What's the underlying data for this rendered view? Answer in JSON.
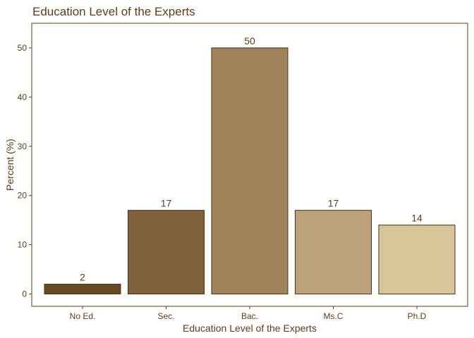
{
  "colors": {
    "text": "#5c3d1a",
    "axis": "#5c3d1a",
    "bar_outline": "#4a3214",
    "bars": [
      "#674a22",
      "#80613e",
      "#a0835b",
      "#bca27a",
      "#d9c599"
    ]
  },
  "chart_data": {
    "type": "bar",
    "title": "Education Level of the Experts",
    "xlabel": "Education Level of the Experts",
    "ylabel": "Percent (%)",
    "categories": [
      "No Ed.",
      "Sec.",
      "Bac.",
      "Ms.C",
      "Ph.D"
    ],
    "values": [
      2,
      17,
      50,
      17,
      14
    ],
    "data_labels": [
      "2",
      "17",
      "50",
      "17",
      "14"
    ],
    "ylim": [
      -2.5,
      55
    ],
    "yticks": [
      0,
      10,
      20,
      30,
      40,
      50
    ],
    "ytick_labels": [
      "0",
      "10",
      "20",
      "30",
      "40",
      "50"
    ],
    "grid": false,
    "legend": "none"
  }
}
